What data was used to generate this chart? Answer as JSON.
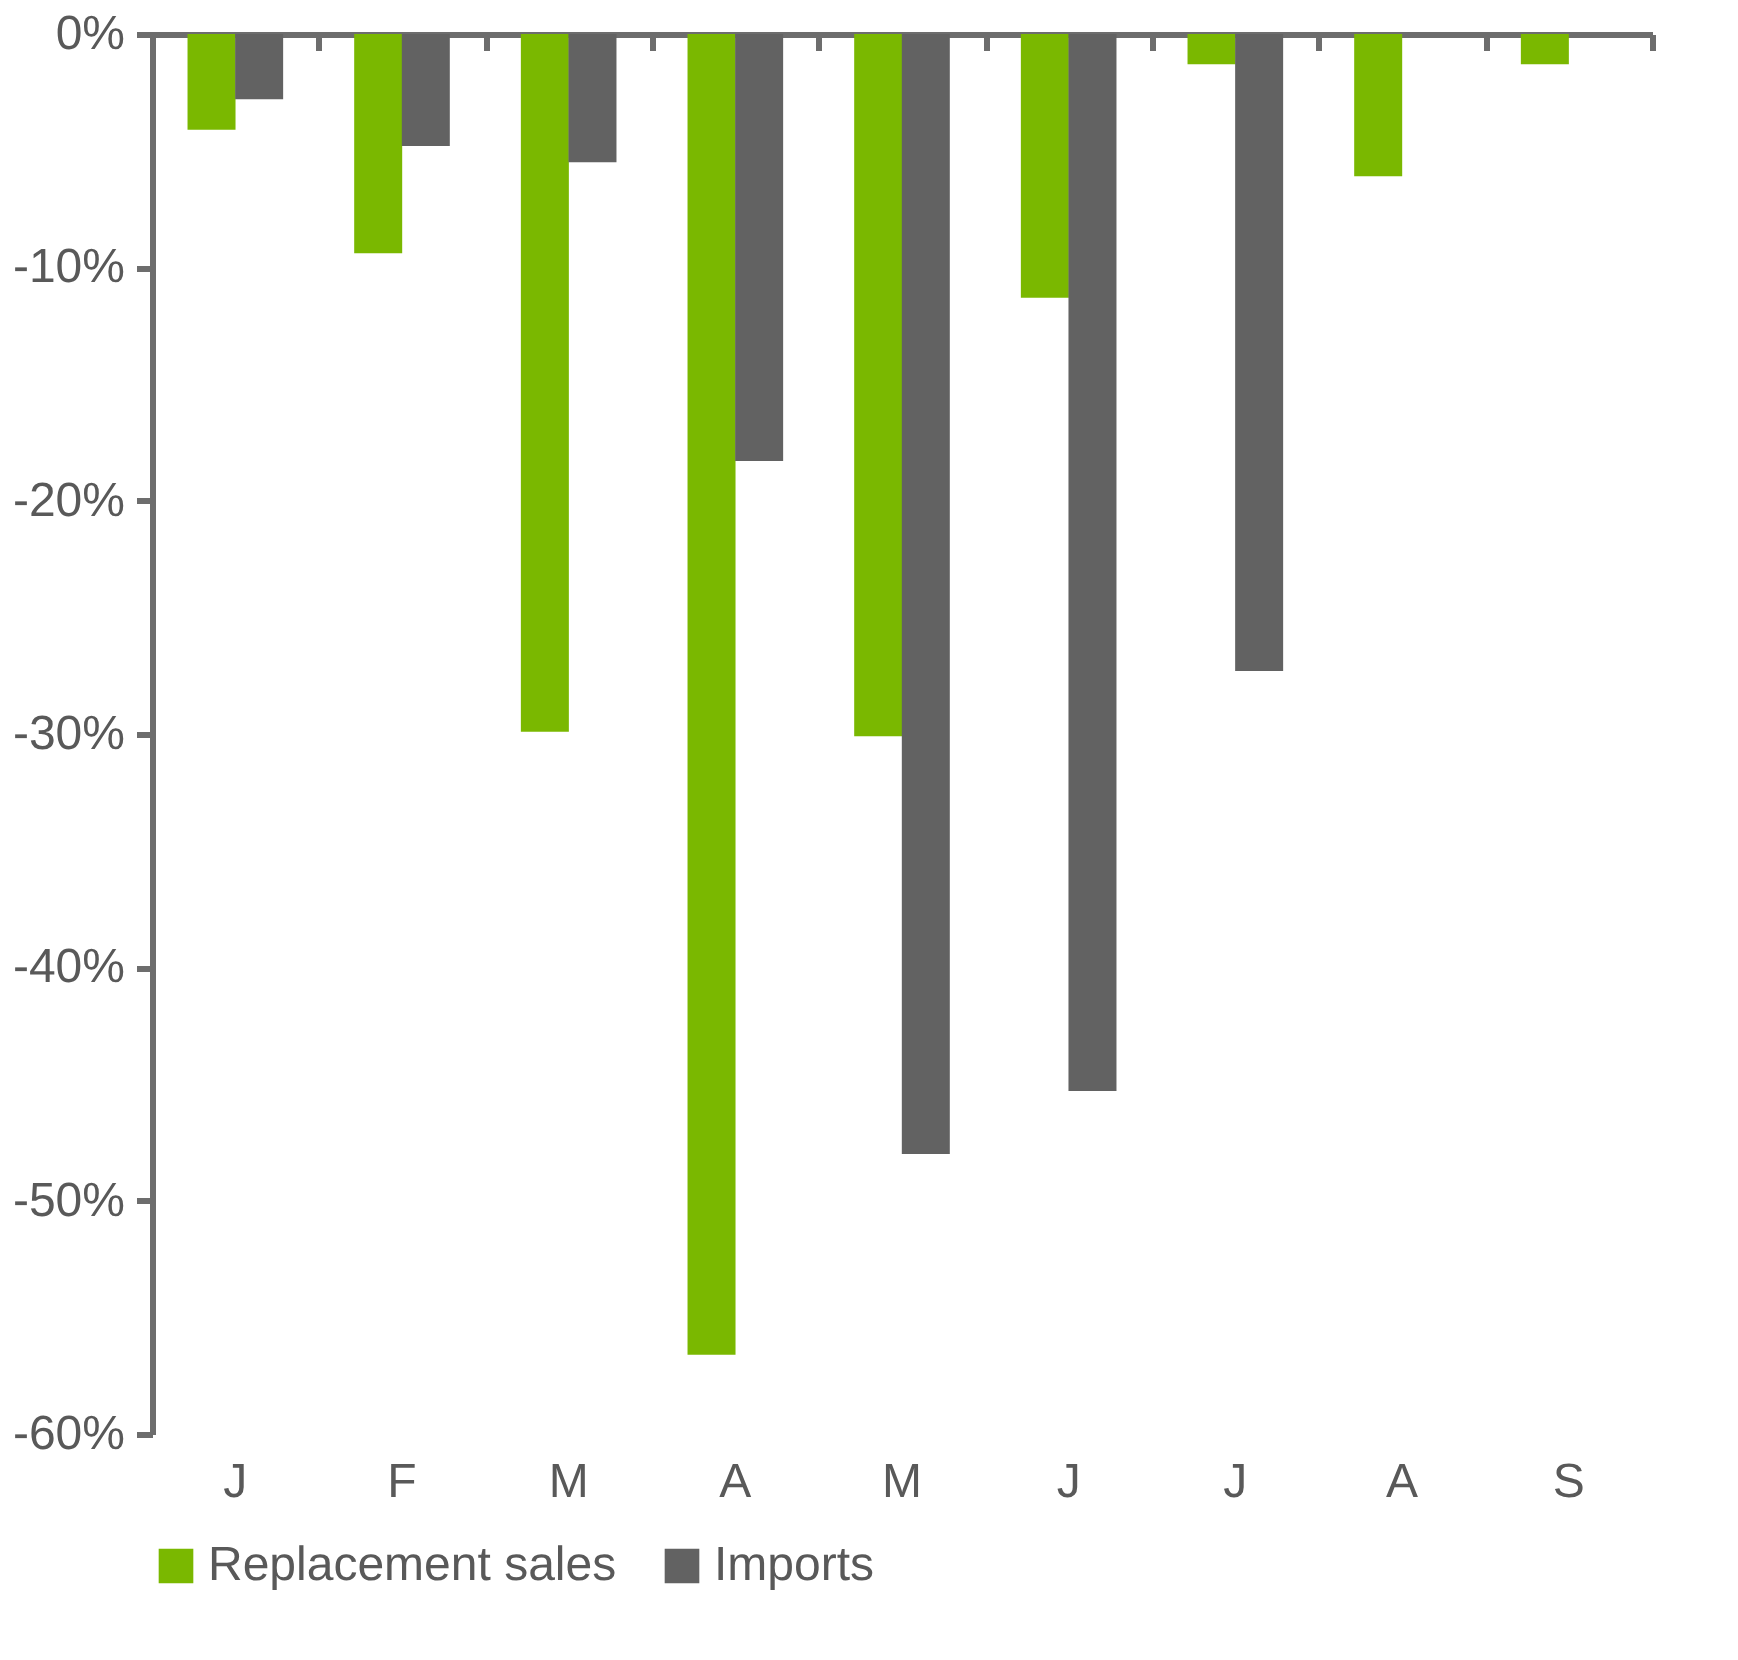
{
  "chart_data": {
    "type": "bar",
    "categories": [
      "J",
      "F",
      "M",
      "A",
      "M",
      "J",
      "J",
      "A",
      "S"
    ],
    "series": [
      {
        "name": "Replacement sales",
        "color": "#7ab800",
        "values": [
          -4.1,
          -9.4,
          -29.9,
          -56.6,
          -30.1,
          -11.3,
          -1.3,
          -6.1,
          -1.3
        ]
      },
      {
        "name": "Imports",
        "color": "#626262",
        "values": [
          -2.8,
          -4.8,
          -5.5,
          -18.3,
          -48.0,
          -45.3,
          -27.3,
          null,
          null
        ]
      }
    ],
    "ylim": [
      -60,
      0
    ],
    "yticks": [
      {
        "value": -60,
        "label": "-60%"
      },
      {
        "value": -50,
        "label": "-50%"
      },
      {
        "value": -40,
        "label": "-40%"
      },
      {
        "value": -30,
        "label": "-30%"
      },
      {
        "value": -20,
        "label": "-20%"
      },
      {
        "value": -10,
        "label": "-10%"
      },
      {
        "value": 0,
        "label": "0%"
      }
    ],
    "grid": false,
    "legend": "bottom"
  }
}
